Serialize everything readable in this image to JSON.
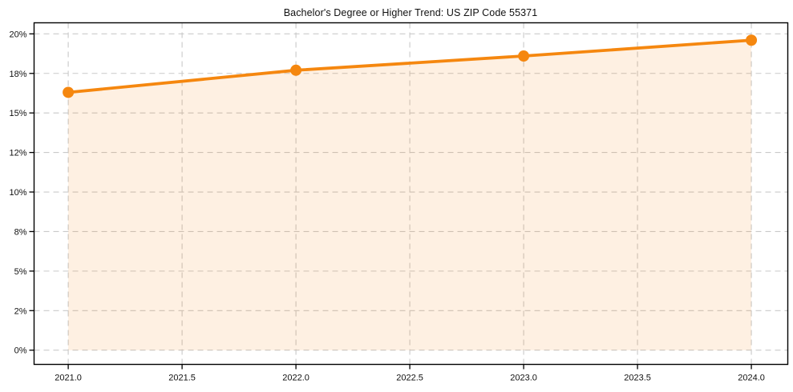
{
  "chart_data": {
    "type": "line",
    "title": "Bachelor's Degree or Higher Trend: US ZIP Code 55371",
    "xlabel": "",
    "ylabel": "",
    "x": [
      2021,
      2022,
      2023,
      2024
    ],
    "values": [
      16.3,
      17.7,
      18.6,
      19.6
    ],
    "value_unit": "%",
    "xtick_values": [
      2021.0,
      2021.5,
      2022.0,
      2022.5,
      2023.0,
      2023.5,
      2024.0
    ],
    "xtick_labels": [
      "2021.0",
      "2021.5",
      "2022.0",
      "2022.5",
      "2023.0",
      "2023.5",
      "2024.0"
    ],
    "ytick_values": [
      0,
      2.5,
      5,
      7.5,
      10,
      12.5,
      15,
      17.5,
      20
    ],
    "ytick_labels": [
      "0%",
      "2%",
      "5%",
      "8%",
      "10%",
      "12%",
      "15%",
      "18%",
      "20%"
    ],
    "xlim": [
      2020.85,
      2024.16
    ],
    "ylim": [
      -0.9,
      20.7
    ],
    "grid": true,
    "grid_style": "dashed",
    "legend": "none",
    "fill_to_zero": true,
    "colors": {
      "line": "#f5870f",
      "marker": "#f5870f",
      "area_fill": "rgba(245,135,15,0.12)",
      "grid": "#c9c9c9",
      "axis": "#000000",
      "text": "#111111",
      "background": "#ffffff"
    }
  }
}
